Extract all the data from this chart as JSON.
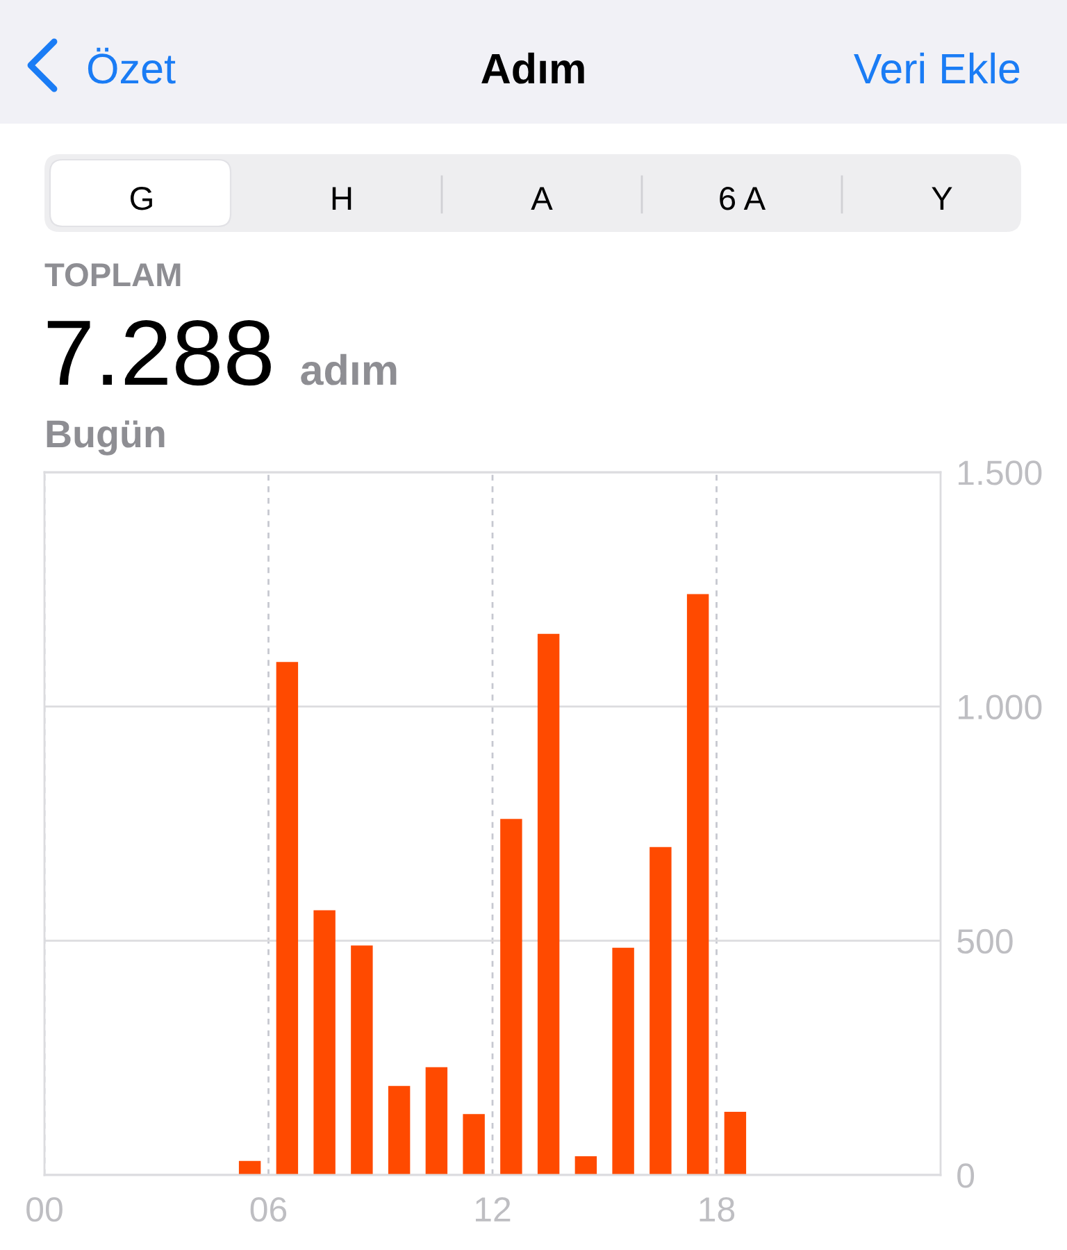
{
  "chart_data": {
    "type": "bar",
    "title": "Adım",
    "subtitle": "Bugün",
    "annotations": [
      "Özet",
      "Veri Ekle",
      "G",
      "H",
      "A",
      "6 A",
      "Y",
      "TOPLAM",
      "7.288",
      "adım"
    ],
    "x": [
      5.5,
      6.5,
      7.5,
      8.5,
      9.5,
      10.5,
      11.5,
      12.5,
      13.5,
      14.5,
      15.5,
      16.5,
      17.5,
      18.5
    ],
    "values": [
      30,
      1095,
      565,
      490,
      190,
      230,
      130,
      760,
      1155,
      40,
      485,
      700,
      1240,
      135
    ],
    "color": "#ff4a00",
    "xlim": [
      0,
      24
    ],
    "xticks": [
      {
        "value": 0,
        "label": "00"
      },
      {
        "value": 6,
        "label": "06"
      },
      {
        "value": 12,
        "label": "12"
      },
      {
        "value": 18,
        "label": "18"
      }
    ],
    "ylim": [
      0,
      1500
    ],
    "yticks": [
      0,
      500,
      {
        "value": 1000,
        "label": "1.000"
      },
      {
        "value": 1500,
        "label": "1.500"
      }
    ],
    "grid": true
  }
}
